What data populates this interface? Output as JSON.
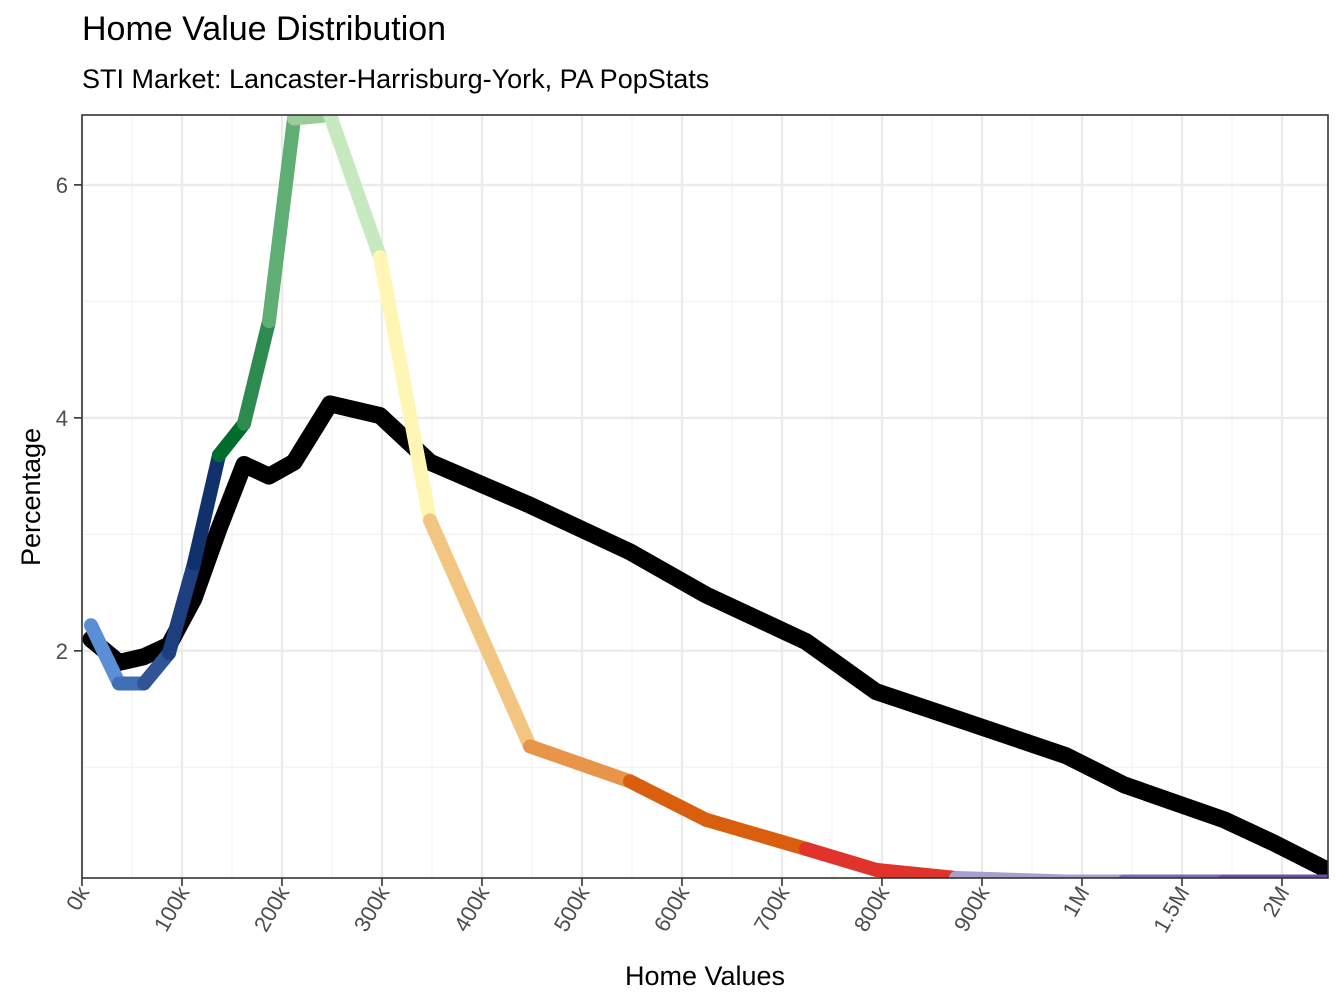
{
  "chart_data": {
    "type": "line",
    "title": "Home Value Distribution",
    "subtitle": "STI Market: Lancaster-Harrisburg-York, PA PopStats",
    "xlabel": "Home Values",
    "ylabel": "Percentage",
    "x_tick_labels": [
      "0k",
      "100k",
      "200k",
      "300k",
      "400k",
      "500k",
      "600k",
      "700k",
      "800k",
      "900k",
      "1M",
      "1.5M",
      "2M"
    ],
    "y_ticks": [
      2,
      4,
      6
    ],
    "ylim": [
      0.05,
      6.6
    ],
    "grid": true,
    "x_categories": [
      "5k",
      "12.5k",
      "17.5k",
      "22.5k",
      "27.5k",
      "32.5k",
      "37.5k",
      "45k",
      "55k",
      "65k",
      "75k",
      "87.5k",
      "112.5k",
      "137.5k",
      "162.5k",
      "187.5k",
      "225k",
      "275k",
      "350k",
      "450k",
      "625k",
      "875k",
      "1.25M",
      "1.75M",
      "2.25M"
    ],
    "series": [
      {
        "values": [
          2.1,
          1.9,
          1.95,
          2.05,
          2.45,
          3.05,
          3.6,
          3.5,
          3.62,
          4.12,
          4.02,
          3.62,
          3.25,
          2.85,
          2.48,
          2.08,
          1.65,
          1.42,
          1.1,
          0.85,
          0.55,
          0.35,
          0.12,
          0.08,
          0.09
        ],
        "color": "#000000"
      },
      {
        "values": [
          2.22,
          1.72,
          1.72,
          1.98,
          2.75,
          3.68,
          3.95,
          4.83,
          6.57,
          6.6,
          5.38,
          3.12,
          1.18,
          0.88,
          0.55,
          0.3,
          0.12,
          0.05,
          0.02,
          0.02,
          0.02,
          0.02,
          0.02,
          0.02,
          0.02
        ],
        "colors": [
          "#5A8FD6",
          "#3E6FB8",
          "#2F5597",
          "#1E3F7F",
          "#10316B",
          "#006D2C",
          "#2E8B50",
          "#5FAE74",
          "#9ACD9B",
          "#C7E9C0",
          "#FFF5B4",
          "#F2C681",
          "#E8954A",
          "#D95F0E",
          "#D95F0E",
          "#E0332B",
          "#E0332B",
          "#A5A0CE",
          "#A5A0CE",
          "#7D6AB5",
          "#6A51A3",
          "#6A51A3",
          "#6A51A3",
          "#6A51A3"
        ]
      }
    ]
  }
}
